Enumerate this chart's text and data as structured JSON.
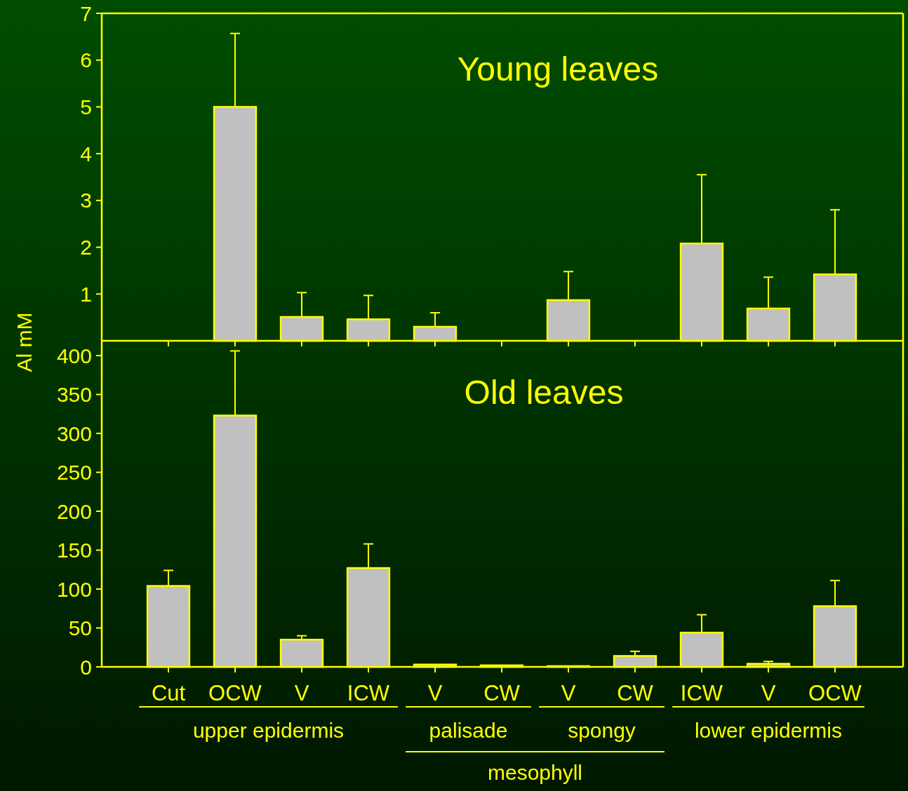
{
  "chart_data": [
    {
      "type": "bar",
      "title": "Young leaves",
      "ylabel": "Al mM",
      "categories": [
        null,
        null,
        null,
        null,
        null,
        null,
        null,
        null,
        null,
        null,
        null
      ],
      "values": [
        null,
        5.0,
        0.51,
        0.46,
        0.3,
        null,
        0.87,
        null,
        2.08,
        0.69,
        1.42
      ],
      "errors": [
        null,
        [
          5.0,
          6.57
        ],
        [
          0.51,
          1.03
        ],
        [
          0.46,
          0.97
        ],
        [
          0.3,
          0.6
        ],
        null,
        [
          0.87,
          1.48
        ],
        null,
        [
          2.08,
          3.55
        ],
        [
          0.69,
          1.36
        ],
        [
          1.42,
          2.8
        ]
      ],
      "color": "#c0c0c0",
      "ylim": [
        0,
        7
      ],
      "yticks": [
        1,
        2,
        3,
        4,
        5,
        6,
        7
      ],
      "tick_labels": "y"
    },
    {
      "type": "bar",
      "title": "Old leaves",
      "categories": [
        "Cut",
        "OCW",
        "V",
        "ICW",
        "V",
        "CW",
        "V",
        "CW",
        "ICW",
        "V",
        "OCW"
      ],
      "values": [
        104,
        323,
        35,
        127,
        3,
        2,
        1,
        14,
        44,
        4,
        78
      ],
      "errors": [
        [
          104,
          124
        ],
        [
          323,
          406
        ],
        [
          35,
          40
        ],
        [
          127,
          158
        ],
        null,
        null,
        null,
        [
          14,
          20
        ],
        [
          44,
          67
        ],
        [
          4,
          7
        ],
        [
          78,
          111
        ]
      ],
      "color": "#c0c0c0",
      "ylim": [
        0,
        419
      ],
      "yticks": [
        0,
        50,
        100,
        150,
        200,
        250,
        300,
        350,
        400
      ],
      "annotations": [
        "upper epidermis",
        "palisade",
        "spongy",
        "lower epidermis",
        "mesophyll"
      ]
    }
  ]
}
